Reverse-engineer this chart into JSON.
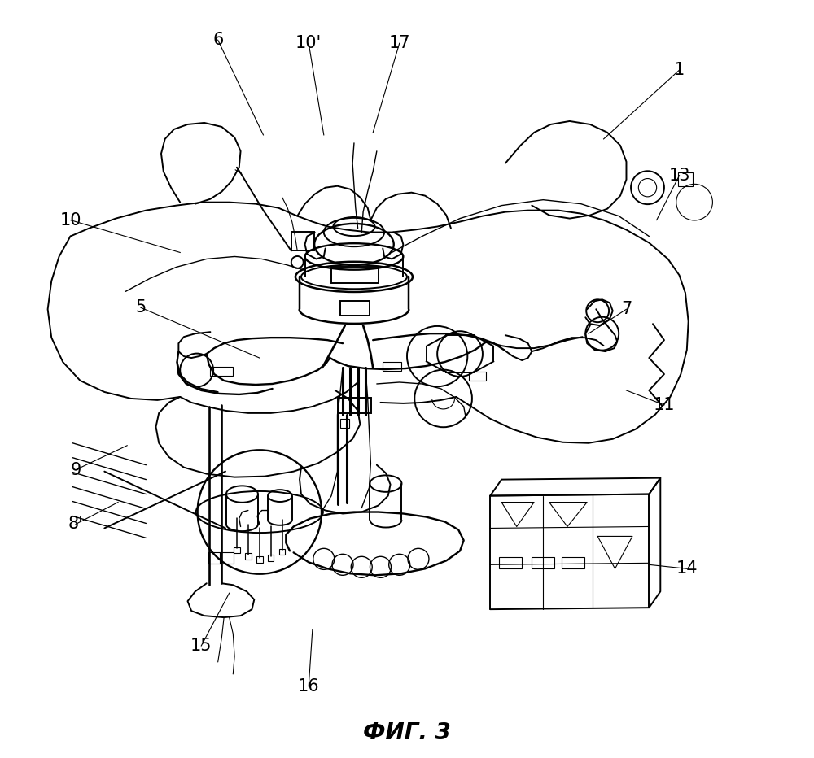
{
  "title": "ФИГ. 3",
  "title_fontsize": 20,
  "bg_color": "#ffffff",
  "line_color": "#000000",
  "lw_main": 1.4,
  "lw_thin": 0.8,
  "lw_thick": 2.0,
  "figwidth": 10.0,
  "figheight": 9.32,
  "labels_info": [
    [
      "1",
      860,
      85,
      760,
      170
    ],
    [
      "5",
      148,
      378,
      305,
      440
    ],
    [
      "6",
      250,
      48,
      310,
      165
    ],
    [
      "7",
      790,
      380,
      740,
      410
    ],
    [
      "8'",
      62,
      645,
      118,
      618
    ],
    [
      "9",
      62,
      578,
      130,
      548
    ],
    [
      "10",
      55,
      270,
      200,
      310
    ],
    [
      "10'",
      370,
      52,
      390,
      165
    ],
    [
      "11",
      840,
      498,
      790,
      480
    ],
    [
      "13",
      860,
      215,
      830,
      270
    ],
    [
      "14",
      870,
      700,
      820,
      695
    ],
    [
      "15",
      228,
      795,
      265,
      730
    ],
    [
      "16",
      370,
      845,
      375,
      775
    ],
    [
      "17",
      490,
      52,
      455,
      162
    ]
  ],
  "label_fontsize": 15
}
